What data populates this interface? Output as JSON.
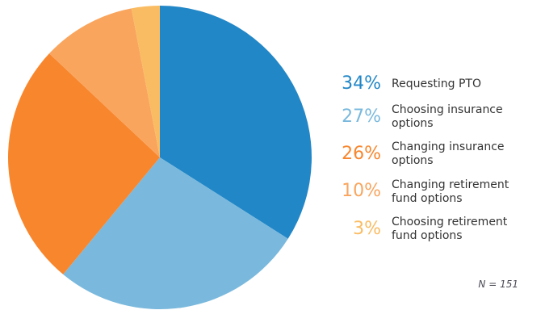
{
  "chart_data": {
    "type": "pie",
    "title": "",
    "start_angle_deg": 0,
    "direction": "clockwise",
    "legend_position": "right",
    "segments": [
      {
        "label": "Requesting PTO",
        "value_pct": 34,
        "display": "34%",
        "color": "#2287c7"
      },
      {
        "label": "Choosing insurance options",
        "value_pct": 27,
        "display": "27%",
        "color": "#7ab9dd"
      },
      {
        "label": "Changing insurance options",
        "value_pct": 26,
        "display": "26%",
        "color": "#f8862d"
      },
      {
        "label": "Changing retirement fund options",
        "value_pct": 10,
        "display": "10%",
        "color": "#f9a55e"
      },
      {
        "label": "Choosing retirement fund options",
        "value_pct": 3,
        "display": "3%",
        "color": "#fabc62"
      }
    ],
    "note": "N = 151"
  }
}
